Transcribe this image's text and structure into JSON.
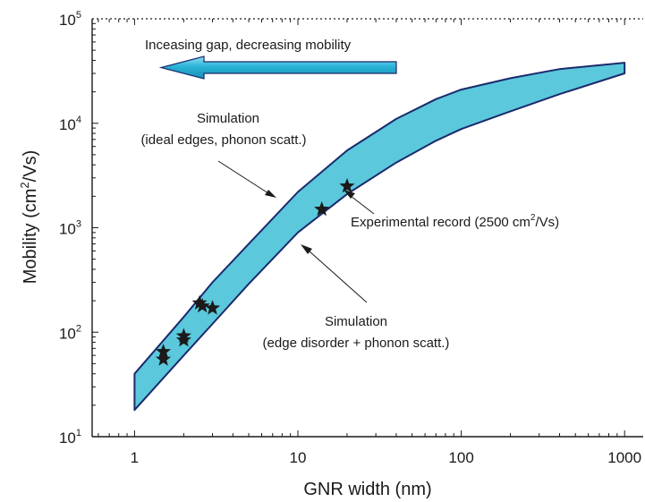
{
  "chart_data": {
    "type": "area",
    "xlabel": "GNR width (nm)",
    "ylabel": "Mobility (cm",
    "ylabel_sup": "2",
    "ylabel_suffix": "/Vs)",
    "x_scale": "log",
    "y_scale": "log",
    "xlim": [
      0.55,
      1300
    ],
    "ylim": [
      10,
      100000
    ],
    "x_ticks": [
      {
        "value": 1,
        "label": "1"
      },
      {
        "value": 10,
        "label": "10"
      },
      {
        "value": 100,
        "label": "100"
      },
      {
        "value": 1000,
        "label": "1000"
      }
    ],
    "y_ticks": [
      {
        "value": 10,
        "base": "10",
        "exp": "1"
      },
      {
        "value": 100,
        "base": "10",
        "exp": "2"
      },
      {
        "value": 1000,
        "base": "10",
        "exp": "3"
      },
      {
        "value": 10000,
        "base": "10",
        "exp": "4"
      },
      {
        "value": 100000,
        "base": "10",
        "exp": "5"
      }
    ],
    "grid": false,
    "band": {
      "fill": "#5bc8dc",
      "stroke": "#1a2a6c",
      "upper_name": "Simulation (ideal edges, phonon scatt.)",
      "lower_name": "Simulation (edge disorder + phonon scatt.)",
      "upper": [
        {
          "x": 1,
          "y": 40
        },
        {
          "x": 2,
          "y": 140
        },
        {
          "x": 3,
          "y": 300
        },
        {
          "x": 5,
          "y": 700
        },
        {
          "x": 10,
          "y": 2200
        },
        {
          "x": 20,
          "y": 5500
        },
        {
          "x": 40,
          "y": 11000
        },
        {
          "x": 70,
          "y": 17000
        },
        {
          "x": 100,
          "y": 21000
        },
        {
          "x": 200,
          "y": 27000
        },
        {
          "x": 400,
          "y": 33000
        },
        {
          "x": 1000,
          "y": 38000
        }
      ],
      "lower": [
        {
          "x": 1,
          "y": 18
        },
        {
          "x": 2,
          "y": 60
        },
        {
          "x": 3,
          "y": 120
        },
        {
          "x": 5,
          "y": 290
        },
        {
          "x": 10,
          "y": 900
        },
        {
          "x": 20,
          "y": 2100
        },
        {
          "x": 40,
          "y": 4200
        },
        {
          "x": 70,
          "y": 6800
        },
        {
          "x": 100,
          "y": 8800
        },
        {
          "x": 200,
          "y": 13000
        },
        {
          "x": 400,
          "y": 19000
        },
        {
          "x": 1000,
          "y": 30000
        }
      ]
    },
    "experimental_points": [
      {
        "x": 1.5,
        "y": 65
      },
      {
        "x": 1.5,
        "y": 55
      },
      {
        "x": 2.0,
        "y": 92
      },
      {
        "x": 2.0,
        "y": 84
      },
      {
        "x": 2.5,
        "y": 190
      },
      {
        "x": 2.6,
        "y": 178
      },
      {
        "x": 3.0,
        "y": 170
      },
      {
        "x": 14,
        "y": 1500
      },
      {
        "x": 20,
        "y": 2500
      }
    ],
    "annotations": {
      "arrow_text": "Inceasing gap, decreasing mobility",
      "upper_sim_line1": "Simulation",
      "upper_sim_line2": "(ideal edges, phonon scatt.)",
      "experimental_prefix": "Experimental record (2500 cm",
      "experimental_sup": "2",
      "experimental_suffix": "/Vs)",
      "lower_sim_line1": "Simulation",
      "lower_sim_line2": "(edge disorder + phonon scatt.)"
    },
    "arrow_color": "#2bb3d8"
  }
}
